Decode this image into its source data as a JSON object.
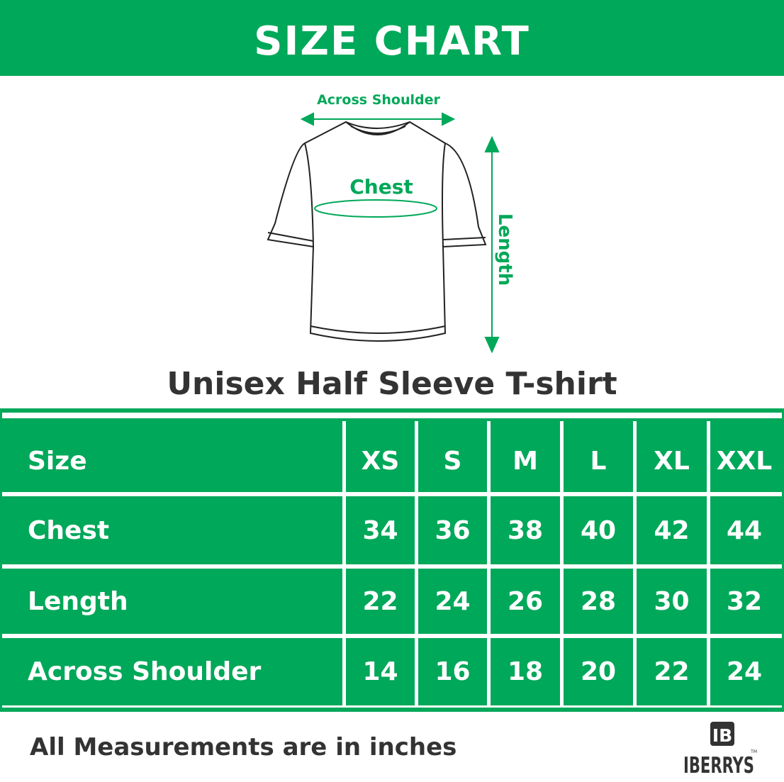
{
  "title": "SIZE CHART",
  "diagram": {
    "across_shoulder_label": "Across Shoulder",
    "chest_label": "Chest",
    "length_label": "Length",
    "accent_color": "#00a859"
  },
  "subtitle": "Unisex Half Sleeve T-shirt",
  "table": {
    "header": {
      "label": "Size",
      "sizes": [
        "XS",
        "S",
        "M",
        "L",
        "XL",
        "XXL"
      ]
    },
    "rows": [
      {
        "label": "Chest",
        "values": [
          "34",
          "36",
          "38",
          "40",
          "42",
          "44"
        ]
      },
      {
        "label": "Length",
        "values": [
          "22",
          "24",
          "26",
          "28",
          "30",
          "32"
        ]
      },
      {
        "label": "Across Shoulder",
        "values": [
          "14",
          "16",
          "18",
          "20",
          "22",
          "24"
        ]
      }
    ],
    "color": "#00a859"
  },
  "footer": "All Measurements are in inches",
  "logo": {
    "mark": "IB",
    "name": "IBERRYS",
    "tm": "TM"
  }
}
